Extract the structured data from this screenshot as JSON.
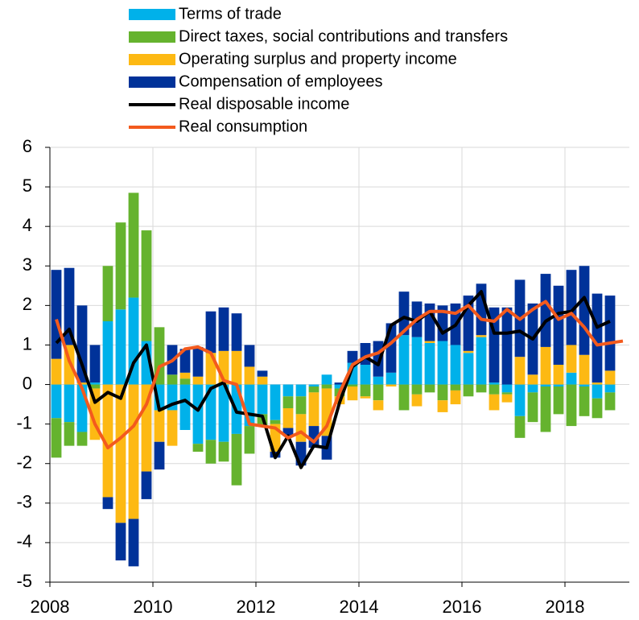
{
  "chart_data": {
    "type": "bar",
    "x": [
      2008.125,
      2008.375,
      2008.625,
      2008.875,
      2009.125,
      2009.375,
      2009.625,
      2009.875,
      2010.125,
      2010.375,
      2010.625,
      2010.875,
      2011.125,
      2011.375,
      2011.625,
      2011.875,
      2012.125,
      2012.375,
      2012.625,
      2012.875,
      2013.125,
      2013.375,
      2013.625,
      2013.875,
      2014.125,
      2014.375,
      2014.625,
      2014.875,
      2015.125,
      2015.375,
      2015.625,
      2015.875,
      2016.125,
      2016.375,
      2016.625,
      2016.875,
      2017.125,
      2017.375,
      2017.625,
      2017.875,
      2018.125,
      2018.375,
      2018.625,
      2018.875,
      2019.125
    ],
    "series": [
      {
        "name": "Terms of trade",
        "color": "#00b1ea",
        "type": "bar",
        "values": [
          -0.85,
          -0.95,
          -1.2,
          0.05,
          1.6,
          1.9,
          2.2,
          1.1,
          -0.65,
          -0.65,
          -1.15,
          -1.5,
          -1.4,
          -1.45,
          -1.25,
          -1.05,
          -0.75,
          -0.9,
          -0.3,
          -0.3,
          -0.05,
          0.25,
          -0.1,
          0.55,
          0.5,
          0.2,
          0.3,
          1.25,
          1.2,
          1.05,
          1.1,
          1.0,
          0.8,
          1.2,
          0.05,
          -0.2,
          -0.8,
          -0.2,
          -0.05,
          -0.05,
          0.3,
          -0.05,
          -0.35,
          -0.2,
          null
        ]
      },
      {
        "name": "Direct taxes, social contributions and transfers",
        "color": "#65b32e",
        "type": "bar",
        "values": [
          -1.0,
          -0.6,
          -0.35,
          -0.1,
          1.4,
          2.2,
          2.65,
          2.8,
          1.45,
          0.25,
          0.15,
          -0.2,
          -0.6,
          -0.5,
          -1.3,
          -0.7,
          -0.3,
          -0.1,
          -0.3,
          -0.45,
          -0.15,
          -0.1,
          -0.2,
          -0.05,
          -0.3,
          -0.4,
          0,
          -0.65,
          -0.25,
          -0.2,
          -0.4,
          -0.15,
          -0.3,
          -0.2,
          -0.25,
          -0.05,
          -0.55,
          -0.75,
          -1.15,
          -0.7,
          -1.05,
          -0.75,
          -0.5,
          -0.45,
          null
        ]
      },
      {
        "name": "Operating surplus and property income",
        "color": "#fdb913",
        "type": "bar",
        "values": [
          0.65,
          1.0,
          0.05,
          -1.3,
          -2.85,
          -3.5,
          -3.4,
          -2.2,
          -0.8,
          -0.9,
          0.15,
          0.2,
          0.8,
          0.85,
          0.85,
          0.45,
          0.2,
          -0.7,
          -0.5,
          -0.7,
          -0.85,
          -1.2,
          -0.2,
          -0.35,
          -0.05,
          -0.25,
          -0.05,
          0,
          -0.3,
          0.05,
          -0.3,
          -0.35,
          0.05,
          0.05,
          -0.4,
          -0.2,
          0.7,
          0.25,
          0.95,
          0.5,
          0.7,
          0.75,
          0.05,
          0.35,
          null
        ]
      },
      {
        "name": "Compensation of employees",
        "color": "#003299",
        "type": "bar",
        "values": [
          2.25,
          1.95,
          1.95,
          0.95,
          -0.3,
          -0.95,
          -1.2,
          -0.7,
          -0.7,
          0.75,
          0.6,
          0.75,
          1.05,
          1.1,
          0.95,
          0.55,
          0.15,
          -0.15,
          -0.2,
          -0.6,
          -0.55,
          -0.6,
          0.05,
          0.3,
          0.55,
          0.9,
          1.25,
          1.1,
          0.9,
          0.95,
          0.9,
          1.05,
          1.4,
          1.3,
          1.9,
          1.95,
          1.95,
          1.8,
          1.85,
          2.0,
          1.9,
          2.25,
          2.25,
          1.9,
          null
        ]
      },
      {
        "name": "Real disposable income",
        "color": "#000000",
        "type": "line",
        "values": [
          1.05,
          1.4,
          0.5,
          -0.45,
          -0.2,
          -0.35,
          0.55,
          1.0,
          -0.65,
          -0.5,
          -0.4,
          -0.65,
          -0.1,
          0.05,
          -0.7,
          -0.75,
          -0.8,
          -1.85,
          -1.3,
          -2.1,
          -1.55,
          -1.6,
          -0.45,
          0.45,
          0.7,
          0.5,
          1.5,
          1.7,
          1.6,
          1.85,
          1.3,
          1.5,
          2.0,
          2.35,
          1.3,
          1.3,
          1.35,
          1.15,
          1.6,
          1.8,
          1.85,
          2.2,
          1.45,
          1.6,
          null
        ]
      },
      {
        "name": "Real consumption",
        "color": "#f35a1d",
        "type": "line",
        "values": [
          1.65,
          0.6,
          -0.1,
          -1.0,
          -1.6,
          -1.35,
          -1.05,
          -0.5,
          0.45,
          0.6,
          0.9,
          0.95,
          0.8,
          0.1,
          0.0,
          -1.0,
          -1.05,
          -1.1,
          -1.35,
          -1.2,
          -1.45,
          -1.05,
          -0.2,
          0.5,
          0.7,
          0.8,
          1.05,
          1.35,
          1.65,
          1.85,
          1.85,
          1.8,
          2.0,
          1.65,
          1.6,
          1.9,
          1.65,
          1.9,
          2.1,
          1.65,
          1.8,
          1.45,
          1.0,
          1.05,
          1.1
        ]
      }
    ],
    "xlim": [
      2008,
      2019.25
    ],
    "xticks": [
      2008,
      2010,
      2012,
      2014,
      2016,
      2018
    ],
    "ylim": [
      -5,
      6
    ],
    "yticks": [
      -5,
      -4,
      -3,
      -2,
      -1,
      0,
      1,
      2,
      3,
      4,
      5,
      6
    ],
    "grid": true
  }
}
